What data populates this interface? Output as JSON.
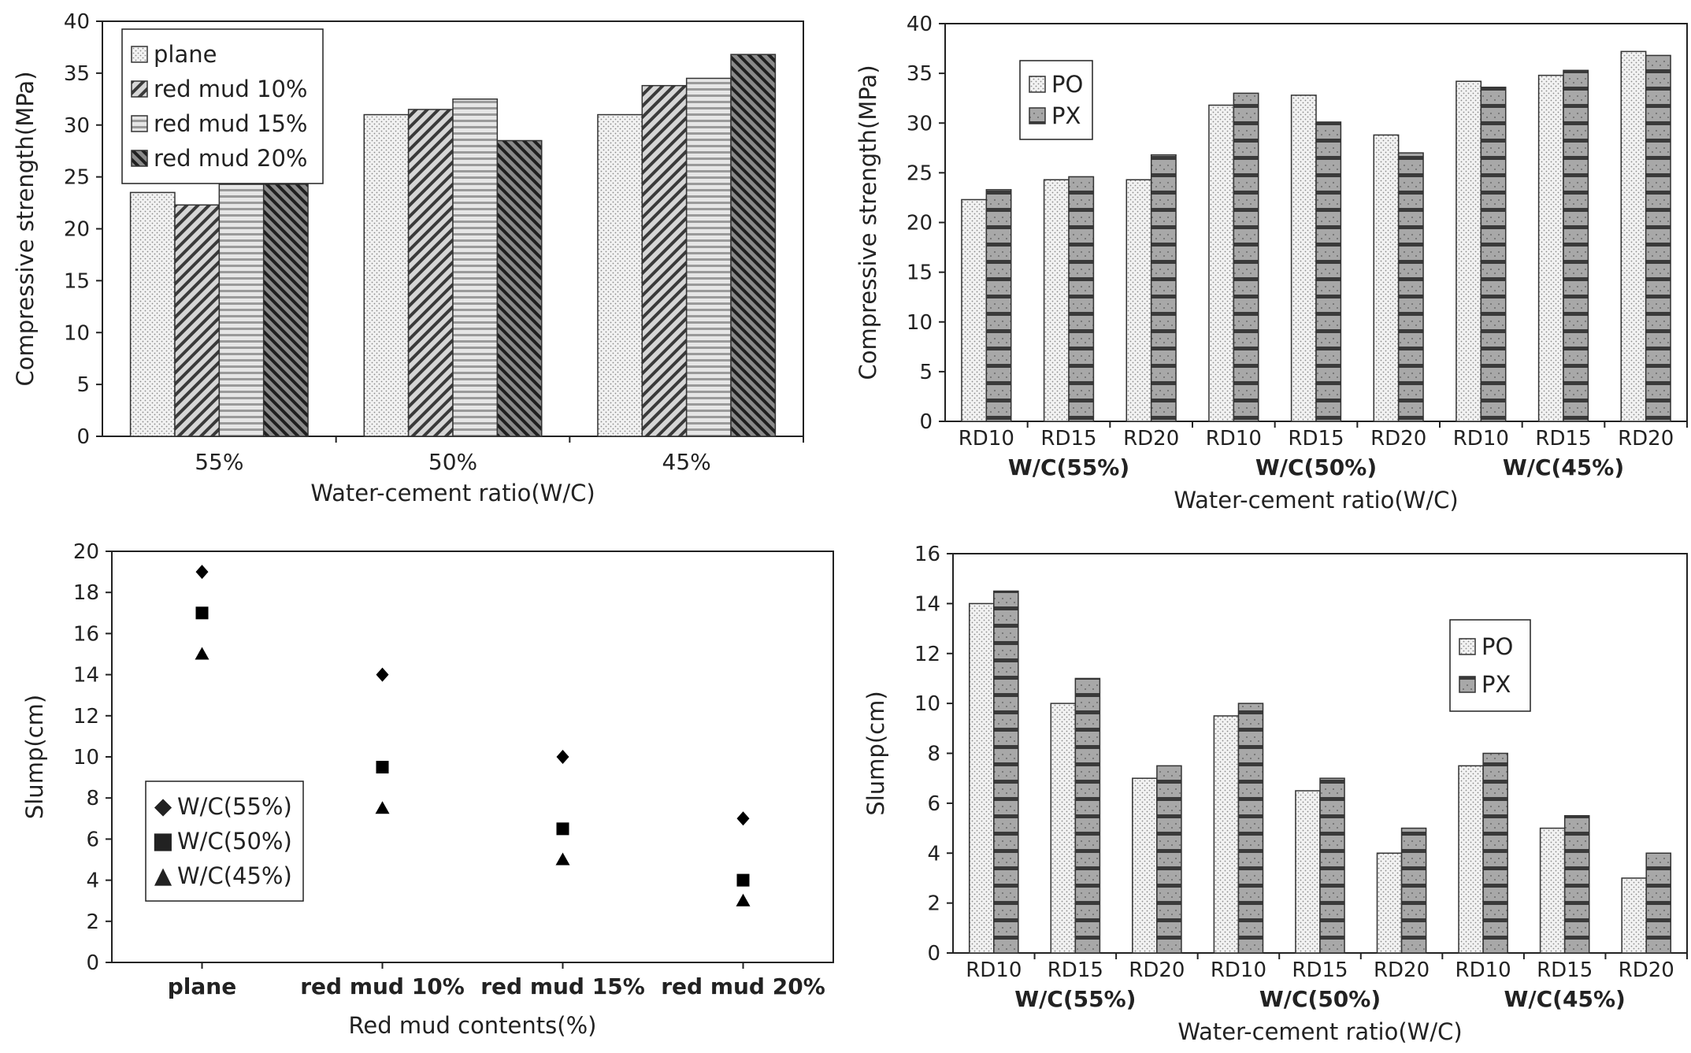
{
  "colors": {
    "axis": "#222222",
    "bar_stroke": "#333333",
    "plane": "#e8e8e8",
    "rm10": "#9a9a9a",
    "rm15": "#d2d2d2",
    "rm20": "#6a6a6a",
    "po": "#e6e6e6",
    "px": "#8e8e8e",
    "marker": "#000000"
  },
  "chart_data": [
    {
      "id": "chart1",
      "type": "bar",
      "xlabel": "Water-cement ratio(W/C)",
      "ylabel": "Compressive strength(MPa)",
      "ylim": [
        0,
        40
      ],
      "ticks": [
        "0",
        "5",
        "10",
        "15",
        "20",
        "25",
        "30",
        "35",
        "40"
      ],
      "categories": [
        "55%",
        "50%",
        "45%"
      ],
      "legend_position": "top-left",
      "series": [
        {
          "name": "plane",
          "color_key": "plane",
          "pattern": "dots",
          "values": [
            23.5,
            31.0,
            31.0
          ]
        },
        {
          "name": "red mud 10%",
          "color_key": "rm10",
          "pattern": "diag",
          "values": [
            22.3,
            31.5,
            33.8
          ]
        },
        {
          "name": "red mud 15%",
          "color_key": "rm15",
          "pattern": "horiz",
          "values": [
            24.3,
            32.5,
            34.5
          ]
        },
        {
          "name": "red mud 20%",
          "color_key": "rm20",
          "pattern": "diag",
          "values": [
            24.3,
            28.5,
            36.8
          ]
        }
      ]
    },
    {
      "id": "chart2",
      "type": "bar",
      "xlabel": "Water-cement ratio(W/C)",
      "ylabel": "Compressive strength(MPa)",
      "ylim": [
        0,
        40
      ],
      "ticks": [
        "0",
        "5",
        "10",
        "15",
        "20",
        "25",
        "30",
        "35",
        "40"
      ],
      "categories": [
        "RD10",
        "RD15",
        "RD20",
        "RD10",
        "RD15",
        "RD20",
        "RD10",
        "RD15",
        "RD20"
      ],
      "groups": [
        "W/C(55%)",
        "W/C(50%)",
        "W/C(45%)"
      ],
      "legend_position": "top-left",
      "series": [
        {
          "name": "PO",
          "color_key": "po",
          "pattern": "dots",
          "values": [
            22.3,
            24.3,
            24.3,
            31.8,
            32.8,
            28.8,
            34.2,
            34.8,
            37.2
          ]
        },
        {
          "name": "PX",
          "color_key": "px",
          "pattern": "horiz",
          "values": [
            23.3,
            24.6,
            26.8,
            33.0,
            30.1,
            27.0,
            33.6,
            35.3,
            36.8
          ]
        }
      ]
    },
    {
      "id": "chart3",
      "type": "scatter",
      "xlabel": "Red mud contents(%)",
      "ylabel": "Slump(cm)",
      "ylim": [
        0,
        20
      ],
      "ticks": [
        "0",
        "2",
        "4",
        "6",
        "8",
        "10",
        "12",
        "14",
        "16",
        "18",
        "20"
      ],
      "categories": [
        "plane",
        "red mud 10%",
        "red mud 15%",
        "red mud 20%"
      ],
      "legend_position": "center-left",
      "series": [
        {
          "name": "W/C(55%)",
          "marker": "diamond",
          "symbol": "◆",
          "values": [
            19,
            14,
            10,
            7
          ]
        },
        {
          "name": "W/C(50%)",
          "marker": "square",
          "symbol": "■",
          "values": [
            17,
            9.5,
            6.5,
            4
          ]
        },
        {
          "name": "W/C(45%)",
          "marker": "triangle",
          "symbol": "▲",
          "values": [
            15,
            7.5,
            5,
            3
          ]
        }
      ]
    },
    {
      "id": "chart4",
      "type": "bar",
      "xlabel": "Water-cement ratio(W/C)",
      "ylabel": "Slump(cm)",
      "ylim": [
        0,
        16
      ],
      "ticks": [
        "0",
        "2",
        "4",
        "6",
        "8",
        "10",
        "12",
        "14",
        "16"
      ],
      "categories": [
        "RD10",
        "RD15",
        "RD20",
        "RD10",
        "RD15",
        "RD20",
        "RD10",
        "RD15",
        "RD20"
      ],
      "groups": [
        "W/C(55%)",
        "W/C(50%)",
        "W/C(45%)"
      ],
      "legend_position": "top-right",
      "series": [
        {
          "name": "PO",
          "color_key": "po",
          "pattern": "dots",
          "values": [
            14,
            10,
            7,
            9.5,
            6.5,
            4,
            7.5,
            5,
            3
          ]
        },
        {
          "name": "PX",
          "color_key": "px",
          "pattern": "horiz",
          "values": [
            14.5,
            11,
            7.5,
            10,
            7,
            5,
            8,
            5.5,
            4
          ]
        }
      ]
    }
  ]
}
